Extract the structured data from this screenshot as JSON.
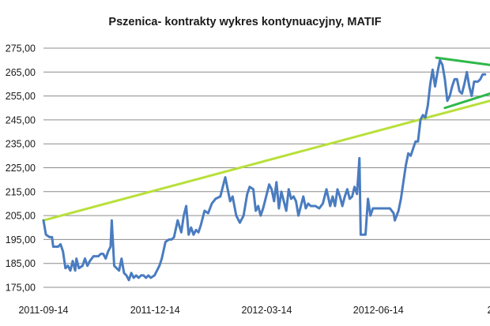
{
  "chart_data": {
    "type": "line",
    "title": "Pszenica- kontrakty wykres kontynuacyjny, MATIF",
    "xlabel": "",
    "ylabel": "",
    "x_ticks": [
      "2011-09-14",
      "2011-12-14",
      "2012-03-14",
      "2012-06-14",
      "2"
    ],
    "y_ticks": [
      "175,00",
      "185,00",
      "195,00",
      "205,00",
      "215,00",
      "225,00",
      "235,00",
      "245,00",
      "255,00",
      "265,00",
      "275,00"
    ],
    "ylim": [
      175,
      275
    ],
    "xlim": [
      "2011-09-14",
      "2012-09-14"
    ],
    "grid": true,
    "legend": "none",
    "colors": {
      "price": "#4a7cc0",
      "trend": "#b8e03a",
      "triangle": "#2eb84a",
      "grid": "#8c8c8c"
    },
    "series": [
      {
        "values": [
          [
            "2011-09-14",
            203
          ],
          [
            "2011-09-16",
            197
          ],
          [
            "2011-09-19",
            196
          ],
          [
            "2011-09-21",
            196
          ],
          [
            "2011-09-22",
            192
          ],
          [
            "2011-09-26",
            192
          ],
          [
            "2011-09-28",
            193
          ],
          [
            "2011-09-30",
            190
          ],
          [
            "2011-10-02",
            183
          ],
          [
            "2011-10-04",
            184
          ],
          [
            "2011-10-06",
            182
          ],
          [
            "2011-10-08",
            186
          ],
          [
            "2011-10-10",
            182
          ],
          [
            "2011-10-11",
            187
          ],
          [
            "2011-10-13",
            183
          ],
          [
            "2011-10-16",
            184
          ],
          [
            "2011-10-18",
            187
          ],
          [
            "2011-10-20",
            184
          ],
          [
            "2011-10-22",
            186
          ],
          [
            "2011-10-25",
            188
          ],
          [
            "2011-10-27",
            188
          ],
          [
            "2011-10-29",
            188
          ],
          [
            "2011-10-31",
            189
          ],
          [
            "2011-11-02",
            189
          ],
          [
            "2011-11-04",
            187
          ],
          [
            "2011-11-06",
            190
          ],
          [
            "2011-11-08",
            192
          ],
          [
            "2011-11-09",
            203
          ],
          [
            "2011-11-11",
            184
          ],
          [
            "2011-11-13",
            183
          ],
          [
            "2011-11-15",
            182
          ],
          [
            "2011-11-17",
            187
          ],
          [
            "2011-11-19",
            181
          ],
          [
            "2011-11-21",
            180
          ],
          [
            "2011-11-23",
            178
          ],
          [
            "2011-11-25",
            181
          ],
          [
            "2011-11-27",
            179
          ],
          [
            "2011-11-29",
            180
          ],
          [
            "2011-12-01",
            179
          ],
          [
            "2011-12-03",
            180
          ],
          [
            "2011-12-05",
            180
          ],
          [
            "2011-12-07",
            179
          ],
          [
            "2011-12-09",
            180
          ],
          [
            "2011-12-11",
            179
          ],
          [
            "2011-12-14",
            180
          ],
          [
            "2011-12-16",
            182
          ],
          [
            "2011-12-18",
            184
          ],
          [
            "2011-12-20",
            187
          ],
          [
            "2011-12-23",
            194
          ],
          [
            "2011-12-26",
            195
          ],
          [
            "2011-12-28",
            195
          ],
          [
            "2011-12-30",
            196
          ],
          [
            "2012-01-02",
            203
          ],
          [
            "2012-01-05",
            198
          ],
          [
            "2012-01-07",
            205
          ],
          [
            "2012-01-09",
            209
          ],
          [
            "2012-01-11",
            197
          ],
          [
            "2012-01-13",
            200
          ],
          [
            "2012-01-15",
            197
          ],
          [
            "2012-01-17",
            199
          ],
          [
            "2012-01-19",
            198
          ],
          [
            "2012-01-21",
            201
          ],
          [
            "2012-01-24",
            207
          ],
          [
            "2012-01-27",
            206
          ],
          [
            "2012-01-30",
            210
          ],
          [
            "2012-02-02",
            212
          ],
          [
            "2012-02-06",
            213
          ],
          [
            "2012-02-10",
            221
          ],
          [
            "2012-02-12",
            216
          ],
          [
            "2012-02-14",
            211
          ],
          [
            "2012-02-16",
            213
          ],
          [
            "2012-02-19",
            205
          ],
          [
            "2012-02-22",
            202
          ],
          [
            "2012-02-25",
            205
          ],
          [
            "2012-02-28",
            214
          ],
          [
            "2012-03-01",
            217
          ],
          [
            "2012-03-04",
            216
          ],
          [
            "2012-03-06",
            207
          ],
          [
            "2012-03-08",
            209
          ],
          [
            "2012-03-10",
            205
          ],
          [
            "2012-03-12",
            208
          ],
          [
            "2012-03-14",
            212
          ],
          [
            "2012-03-17",
            218
          ],
          [
            "2012-03-19",
            216
          ],
          [
            "2012-03-21",
            211
          ],
          [
            "2012-03-23",
            219
          ],
          [
            "2012-03-25",
            208
          ],
          [
            "2012-03-27",
            215
          ],
          [
            "2012-03-29",
            211
          ],
          [
            "2012-03-31",
            207
          ],
          [
            "2012-04-02",
            216
          ],
          [
            "2012-04-04",
            212
          ],
          [
            "2012-04-06",
            213
          ],
          [
            "2012-04-08",
            211
          ],
          [
            "2012-04-10",
            205
          ],
          [
            "2012-04-12",
            209
          ],
          [
            "2012-04-14",
            213
          ],
          [
            "2012-04-16",
            208
          ],
          [
            "2012-04-18",
            210
          ],
          [
            "2012-04-20",
            209
          ],
          [
            "2012-04-22",
            209
          ],
          [
            "2012-04-24",
            209
          ],
          [
            "2012-04-27",
            208
          ],
          [
            "2012-04-30",
            210
          ],
          [
            "2012-05-03",
            216
          ],
          [
            "2012-05-06",
            209
          ],
          [
            "2012-05-08",
            213
          ],
          [
            "2012-05-10",
            209
          ],
          [
            "2012-05-12",
            216
          ],
          [
            "2012-05-14",
            213
          ],
          [
            "2012-05-16",
            209
          ],
          [
            "2012-05-18",
            213
          ],
          [
            "2012-05-20",
            216
          ],
          [
            "2012-05-22",
            212
          ],
          [
            "2012-05-24",
            213
          ],
          [
            "2012-05-26",
            217
          ],
          [
            "2012-05-28",
            214
          ],
          [
            "2012-05-30",
            229
          ],
          [
            "2012-05-31",
            197
          ],
          [
            "2012-06-02",
            197
          ],
          [
            "2012-06-04",
            197
          ],
          [
            "2012-06-06",
            212
          ],
          [
            "2012-06-08",
            205
          ],
          [
            "2012-06-10",
            208
          ],
          [
            "2012-06-12",
            208
          ],
          [
            "2012-06-16",
            208
          ],
          [
            "2012-06-20",
            208
          ],
          [
            "2012-06-24",
            208
          ],
          [
            "2012-06-27",
            206
          ],
          [
            "2012-06-28",
            203
          ],
          [
            "2012-07-01",
            207
          ],
          [
            "2012-07-03",
            212
          ],
          [
            "2012-07-05",
            219
          ],
          [
            "2012-07-07",
            226
          ],
          [
            "2012-07-09",
            231
          ],
          [
            "2012-07-11",
            230
          ],
          [
            "2012-07-13",
            233
          ],
          [
            "2012-07-15",
            236
          ],
          [
            "2012-07-17",
            236
          ],
          [
            "2012-07-19",
            245
          ],
          [
            "2012-07-21",
            247
          ],
          [
            "2012-07-23",
            246
          ],
          [
            "2012-07-25",
            251
          ],
          [
            "2012-07-27",
            260
          ],
          [
            "2012-07-29",
            266
          ],
          [
            "2012-07-31",
            259
          ],
          [
            "2012-08-02",
            265
          ],
          [
            "2012-08-04",
            270
          ],
          [
            "2012-08-06",
            268
          ],
          [
            "2012-08-08",
            262
          ],
          [
            "2012-08-10",
            253
          ],
          [
            "2012-08-12",
            255
          ],
          [
            "2012-08-14",
            259
          ],
          [
            "2012-08-16",
            262
          ],
          [
            "2012-08-18",
            262
          ],
          [
            "2012-08-20",
            257
          ],
          [
            "2012-08-22",
            256
          ],
          [
            "2012-08-24",
            260
          ],
          [
            "2012-08-26",
            265
          ],
          [
            "2012-08-28",
            259
          ],
          [
            "2012-08-30",
            255
          ],
          [
            "2012-09-01",
            261
          ],
          [
            "2012-09-04",
            261
          ],
          [
            "2012-09-06",
            262
          ],
          [
            "2012-09-08",
            264
          ],
          [
            "2012-09-10",
            264
          ]
        ]
      }
    ],
    "annotations": [
      {
        "type": "trendline",
        "color": "trend",
        "points": [
          [
            "2011-09-14",
            203
          ],
          [
            "2012-09-14",
            253
          ]
        ]
      },
      {
        "type": "trendline",
        "color": "triangle",
        "points": [
          [
            "2012-08-01",
            271
          ],
          [
            "2012-09-14",
            268
          ]
        ]
      },
      {
        "type": "trendline",
        "color": "triangle",
        "points": [
          [
            "2012-08-08",
            250
          ],
          [
            "2012-09-14",
            256
          ]
        ]
      }
    ]
  }
}
